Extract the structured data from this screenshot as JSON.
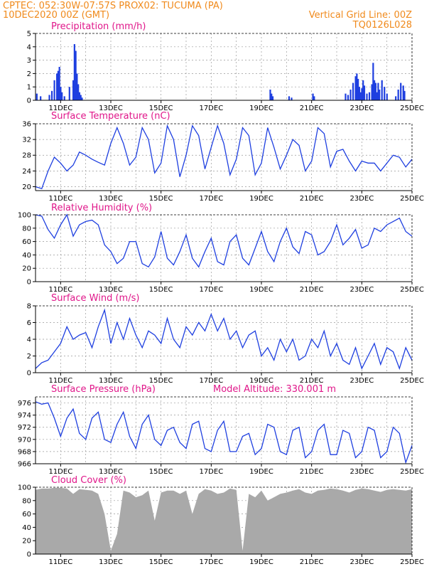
{
  "header": {
    "line1_left": "CPTEC:    052:30W-07:57S   PROX02: TUCUMA (PA)",
    "line2_left": "10DEC2020 00Z (GMT)",
    "line1_right": "Vertical Grid Line: 00Z",
    "line2_right": "TQ0126L028"
  },
  "colors": {
    "header": "#f08a1c",
    "title": "#e0178a",
    "series": "#1e3fe0",
    "cloud": "#a9a9a9",
    "grid": "#999999"
  },
  "x_labels": [
    "11DEC",
    "13DEC",
    "15DEC",
    "17DEC",
    "19DEC",
    "21DEC",
    "23DEC",
    "25DEC"
  ],
  "chart_data": [
    {
      "type": "bar",
      "title": "Precipitation (mm/h)",
      "ylim": [
        0,
        5
      ],
      "yticks": [
        0,
        1,
        2,
        3,
        4,
        5
      ],
      "x_unit": "days since 10DEC2020 00Z",
      "x": [
        0.05,
        0.2,
        0.55,
        0.65,
        0.75,
        0.85,
        0.9,
        0.95,
        1.0,
        1.05,
        1.15,
        1.35,
        1.5,
        1.55,
        1.6,
        1.65,
        1.7,
        1.75,
        1.8,
        1.85,
        9.35,
        9.4,
        9.45,
        10.1,
        10.2,
        11.05,
        11.1,
        12.35,
        12.45,
        12.55,
        12.65,
        12.75,
        12.8,
        12.85,
        12.9,
        12.95,
        13.0,
        13.05,
        13.1,
        13.2,
        13.3,
        13.4,
        13.45,
        13.5,
        13.55,
        13.6,
        13.65,
        13.7,
        13.8,
        13.9,
        14.0,
        14.35,
        14.45,
        14.55,
        14.65,
        14.7
      ],
      "values": [
        0.5,
        0.3,
        0.4,
        0.7,
        1.5,
        2.0,
        2.2,
        2.5,
        1.0,
        0.6,
        0.3,
        1.0,
        1.5,
        4.2,
        3.7,
        2.0,
        1.2,
        0.6,
        0.4,
        0.2,
        0.8,
        0.5,
        0.3,
        0.3,
        0.2,
        0.5,
        0.3,
        0.5,
        0.4,
        0.8,
        1.3,
        1.8,
        2.0,
        1.6,
        1.0,
        0.6,
        0.9,
        1.5,
        1.1,
        0.5,
        0.6,
        1.2,
        2.8,
        1.5,
        1.3,
        0.6,
        1.3,
        0.8,
        1.5,
        1.0,
        0.5,
        0.3,
        0.8,
        1.3,
        1.1,
        0.7
      ]
    },
    {
      "type": "line",
      "title": "Surface Temperature (nC)",
      "ylim": [
        19,
        36
      ],
      "yticks": [
        20,
        24,
        28,
        32,
        36
      ],
      "x_unit": "days since 10DEC2020 00Z",
      "x": [
        0,
        0.25,
        0.5,
        0.75,
        1.0,
        1.25,
        1.5,
        1.75,
        2.0,
        2.25,
        2.5,
        2.75,
        3.0,
        3.25,
        3.5,
        3.75,
        4.0,
        4.25,
        4.5,
        4.75,
        5.0,
        5.25,
        5.5,
        5.75,
        6.0,
        6.25,
        6.5,
        6.75,
        7.0,
        7.25,
        7.5,
        7.75,
        8.0,
        8.25,
        8.5,
        8.75,
        9.0,
        9.25,
        9.5,
        9.75,
        10.0,
        10.25,
        10.5,
        10.75,
        11.0,
        11.25,
        11.5,
        11.75,
        12.0,
        12.25,
        12.5,
        12.75,
        13.0,
        13.25,
        13.5,
        13.75,
        14.0,
        14.25,
        14.5,
        14.75,
        15.0
      ],
      "values": [
        20,
        19.5,
        24,
        27.5,
        26,
        24,
        25.5,
        28.8,
        28,
        27,
        26.2,
        25.5,
        31,
        35,
        31,
        25.5,
        27.5,
        35,
        32,
        23.5,
        26,
        35.5,
        32,
        22.5,
        28,
        35.5,
        33,
        24.5,
        30,
        35.5,
        31,
        23,
        27,
        35,
        33,
        23,
        26,
        35,
        30,
        24.5,
        28,
        32,
        30.5,
        24,
        26.5,
        35,
        33.5,
        25,
        29,
        29.5,
        26.5,
        24,
        26.5,
        26,
        26,
        24,
        26,
        28,
        27.5,
        25,
        27
      ]
    },
    {
      "type": "line",
      "title": "Relative Humidity (%)",
      "ylim": [
        0,
        100
      ],
      "yticks": [
        0,
        20,
        40,
        60,
        80,
        100
      ],
      "x_unit": "days since 10DEC2020 00Z",
      "x": [
        0,
        0.25,
        0.5,
        0.75,
        1.0,
        1.25,
        1.5,
        1.75,
        2.0,
        2.25,
        2.5,
        2.75,
        3.0,
        3.25,
        3.5,
        3.75,
        4.0,
        4.25,
        4.5,
        4.75,
        5.0,
        5.25,
        5.5,
        5.75,
        6.0,
        6.25,
        6.5,
        6.75,
        7.0,
        7.25,
        7.5,
        7.75,
        8.0,
        8.25,
        8.5,
        8.75,
        9.0,
        9.25,
        9.5,
        9.75,
        10.0,
        10.25,
        10.5,
        10.75,
        11.0,
        11.25,
        11.5,
        11.75,
        12.0,
        12.25,
        12.5,
        12.75,
        13.0,
        13.25,
        13.5,
        13.75,
        14.0,
        14.25,
        14.5,
        14.75,
        15.0
      ],
      "values": [
        100,
        98,
        78,
        65,
        85,
        100,
        68,
        85,
        90,
        92,
        85,
        55,
        45,
        27,
        35,
        60,
        60,
        27,
        22,
        37,
        75,
        35,
        25,
        45,
        70,
        35,
        22,
        45,
        65,
        30,
        25,
        60,
        70,
        35,
        25,
        50,
        75,
        45,
        30,
        60,
        80,
        52,
        42,
        75,
        70,
        40,
        45,
        60,
        85,
        55,
        65,
        78,
        50,
        55,
        80,
        75,
        85,
        90,
        95,
        75,
        68
      ]
    },
    {
      "type": "line",
      "title": "Surface Wind (m/s)",
      "ylim": [
        0,
        8
      ],
      "yticks": [
        0,
        2,
        4,
        6,
        8
      ],
      "x_unit": "days since 10DEC2020 00Z",
      "x": [
        0,
        0.25,
        0.5,
        0.75,
        1.0,
        1.25,
        1.5,
        1.75,
        2.0,
        2.25,
        2.5,
        2.75,
        3.0,
        3.25,
        3.5,
        3.75,
        4.0,
        4.25,
        4.5,
        4.75,
        5.0,
        5.25,
        5.5,
        5.75,
        6.0,
        6.25,
        6.5,
        6.75,
        7.0,
        7.25,
        7.5,
        7.75,
        8.0,
        8.25,
        8.5,
        8.75,
        9.0,
        9.25,
        9.5,
        9.75,
        10.0,
        10.25,
        10.5,
        10.75,
        11.0,
        11.25,
        11.5,
        11.75,
        12.0,
        12.25,
        12.5,
        12.75,
        13.0,
        13.25,
        13.5,
        13.75,
        14.0,
        14.25,
        14.5,
        14.75,
        15.0
      ],
      "values": [
        0.5,
        1.2,
        1.5,
        2.5,
        3.5,
        5.5,
        4.0,
        4.5,
        4.8,
        3.0,
        5.5,
        7.5,
        3.5,
        6.0,
        4.0,
        6.5,
        4.5,
        3.0,
        5.0,
        4.5,
        3.5,
        6.5,
        4.0,
        3.0,
        5.5,
        4.5,
        6.0,
        5.0,
        7.0,
        5.0,
        6.5,
        4.0,
        5.0,
        3.0,
        4.5,
        5.0,
        2.0,
        3.0,
        1.5,
        4.0,
        2.5,
        4.0,
        1.5,
        2.0,
        4.0,
        3.0,
        5.0,
        2.0,
        3.5,
        1.5,
        1.0,
        3.0,
        0.5,
        2.0,
        3.5,
        1.0,
        3.0,
        2.5,
        0.5,
        3.0,
        1.5
      ]
    },
    {
      "type": "line",
      "title": "Surface Pressure (hPa)",
      "annotation": "Model Altitude: 330.001 m",
      "ylim": [
        966,
        977
      ],
      "yticks": [
        966,
        968,
        970,
        972,
        974,
        976
      ],
      "x_unit": "days since 10DEC2020 00Z",
      "x": [
        0,
        0.25,
        0.5,
        0.75,
        1.0,
        1.25,
        1.5,
        1.75,
        2.0,
        2.25,
        2.5,
        2.75,
        3.0,
        3.25,
        3.5,
        3.75,
        4.0,
        4.25,
        4.5,
        4.75,
        5.0,
        5.25,
        5.5,
        5.75,
        6.0,
        6.25,
        6.5,
        6.75,
        7.0,
        7.25,
        7.5,
        7.75,
        8.0,
        8.25,
        8.5,
        8.75,
        9.0,
        9.25,
        9.5,
        9.75,
        10.0,
        10.25,
        10.5,
        10.75,
        11.0,
        11.25,
        11.5,
        11.75,
        12.0,
        12.25,
        12.5,
        12.75,
        13.0,
        13.25,
        13.5,
        13.75,
        14.0,
        14.25,
        14.5,
        14.75,
        15.0
      ],
      "values": [
        976.2,
        975.8,
        976.0,
        973.5,
        970.5,
        973.5,
        975.0,
        971.0,
        970.0,
        973.5,
        974.5,
        970.0,
        969.5,
        972.5,
        974.5,
        970.5,
        968.5,
        972.5,
        974.0,
        970.0,
        969.0,
        971.5,
        972.0,
        969.5,
        968.5,
        972.5,
        973.0,
        968.5,
        968.0,
        971.5,
        973.0,
        968.0,
        968.0,
        970.5,
        971.0,
        967.5,
        968.5,
        972.5,
        972.0,
        968.0,
        967.5,
        971.5,
        972.0,
        967.0,
        968.0,
        971.5,
        972.5,
        967.5,
        967.5,
        971.5,
        971.0,
        967.0,
        968.0,
        972.0,
        971.5,
        967.0,
        968.0,
        972.0,
        971.0,
        966.2,
        969.0
      ]
    },
    {
      "type": "area",
      "title": "Cloud Cover (%)",
      "ylim": [
        0,
        100
      ],
      "yticks": [
        0,
        20,
        40,
        60,
        80,
        100
      ],
      "x_unit": "days since 10DEC2020 00Z",
      "x": [
        0,
        0.25,
        0.5,
        0.75,
        1.0,
        1.25,
        1.5,
        1.75,
        2.0,
        2.25,
        2.5,
        2.75,
        3.0,
        3.25,
        3.5,
        3.75,
        4.0,
        4.25,
        4.5,
        4.75,
        5.0,
        5.25,
        5.5,
        5.75,
        6.0,
        6.25,
        6.5,
        6.75,
        7.0,
        7.25,
        7.5,
        7.75,
        8.0,
        8.25,
        8.5,
        8.75,
        9.0,
        9.25,
        9.5,
        9.75,
        10.0,
        10.25,
        10.5,
        10.75,
        11.0,
        11.25,
        11.5,
        11.75,
        12.0,
        12.25,
        12.5,
        12.75,
        13.0,
        13.25,
        13.5,
        13.75,
        14.0,
        14.25,
        14.5,
        14.75,
        15.0
      ],
      "values": [
        96,
        98,
        98,
        99,
        99,
        98,
        90,
        97,
        96,
        95,
        90,
        60,
        5,
        30,
        95,
        92,
        85,
        88,
        95,
        50,
        92,
        95,
        95,
        90,
        95,
        60,
        90,
        97,
        95,
        90,
        92,
        98,
        96,
        5,
        90,
        85,
        95,
        80,
        85,
        90,
        92,
        95,
        97,
        92,
        90,
        95,
        96,
        98,
        97,
        95,
        92,
        96,
        98,
        97,
        95,
        93,
        96,
        97,
        96,
        95,
        97
      ]
    }
  ]
}
